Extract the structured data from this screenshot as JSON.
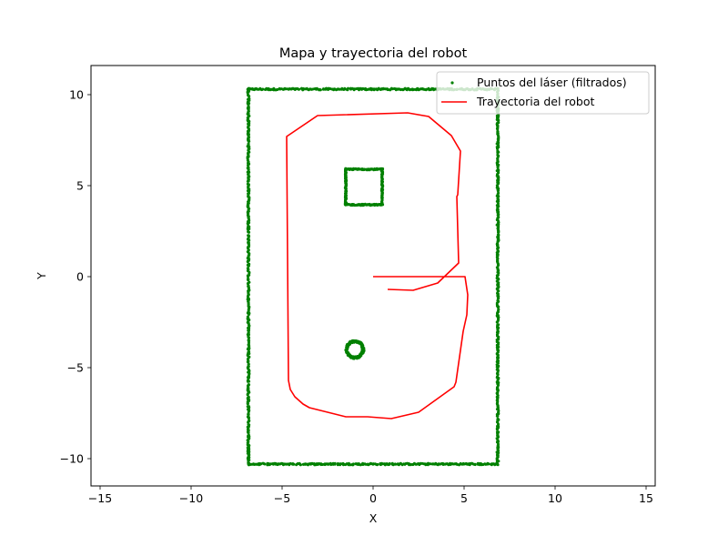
{
  "chart_data": {
    "type": "scatter",
    "title": "Mapa y trayectoria del robot",
    "xlabel": "X",
    "ylabel": "Y",
    "xlim": [
      -15.5,
      15.5
    ],
    "ylim": [
      -11.5,
      11.6
    ],
    "xticks": [
      -15,
      -10,
      -5,
      0,
      5,
      10,
      15
    ],
    "yticks": [
      -10,
      -5,
      0,
      5,
      10
    ],
    "grid": false,
    "legend": {
      "placement": "top-right",
      "entries": [
        {
          "label": "Puntos del láser (filtrados)",
          "kind": "points",
          "color": "#008000"
        },
        {
          "label": "Trayectoria del robot",
          "kind": "line",
          "color": "#ff0000"
        }
      ]
    },
    "series": [
      {
        "name": "Puntos del láser (filtrados)",
        "kind": "scatter",
        "color": "#008000",
        "shapes": [
          {
            "shape": "rect",
            "x0": -6.85,
            "x1": 6.85,
            "y0": -10.3,
            "y1": 10.3
          },
          {
            "shape": "rect",
            "x0": -1.5,
            "x1": 0.5,
            "y0": 3.95,
            "y1": 5.9
          },
          {
            "shape": "circle",
            "cx": -1.0,
            "cy": -4.0,
            "r": 0.45
          }
        ]
      },
      {
        "name": "Trayectoria del robot",
        "kind": "line",
        "color": "#ff0000",
        "x": [
          0.0,
          5.05,
          5.2,
          5.15,
          4.95,
          4.55,
          4.45,
          2.5,
          1.0,
          -0.3,
          -1.5,
          -3.5,
          -3.85,
          -4.3,
          -4.55,
          -4.65,
          -4.75,
          -3.05,
          1.9,
          3.05,
          4.3,
          4.8,
          4.65,
          4.6,
          4.7,
          3.55,
          2.2,
          0.8
        ],
        "y": [
          0.0,
          0.0,
          -1.0,
          -2.1,
          -3.0,
          -5.8,
          -6.05,
          -7.45,
          -7.8,
          -7.7,
          -7.7,
          -7.2,
          -7.0,
          -6.6,
          -6.2,
          -5.7,
          7.7,
          8.85,
          9.0,
          8.8,
          7.75,
          6.9,
          4.5,
          4.4,
          0.75,
          -0.35,
          -0.75,
          -0.7
        ]
      }
    ]
  }
}
